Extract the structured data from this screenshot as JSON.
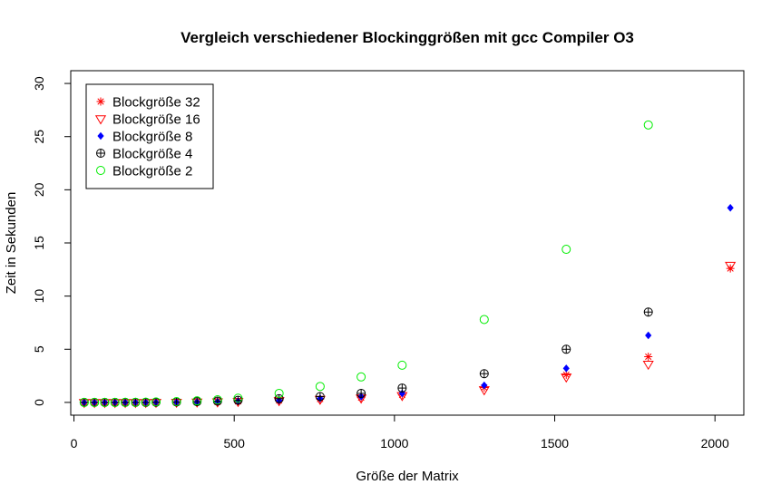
{
  "chart_data": {
    "type": "scatter",
    "title": "Vergleich verschiedener Blockinggrößen mit gcc Compiler O3",
    "xlabel": "Größe der Matrix",
    "ylabel": "Zeit in Sekunden",
    "xlim": [
      -10,
      2090
    ],
    "ylim": [
      -1.2,
      31.2
    ],
    "xticks": [
      0,
      500,
      1000,
      1500,
      2000
    ],
    "yticks": [
      0,
      5,
      10,
      15,
      20,
      25,
      30
    ],
    "grid": false,
    "legend_position": "top-left",
    "series": [
      {
        "name": "Blockgröße 32",
        "color": "#ff0000",
        "marker": "asterisk",
        "x": [
          32,
          64,
          96,
          128,
          160,
          192,
          224,
          256,
          320,
          384,
          448,
          512,
          640,
          768,
          896,
          1024,
          1280,
          1536,
          1792,
          2048
        ],
        "y": [
          0.0,
          0.0,
          0.0,
          0.0,
          0.0,
          0.0,
          0.0,
          0.01,
          0.02,
          0.04,
          0.06,
          0.1,
          0.18,
          0.32,
          0.45,
          0.7,
          1.4,
          2.6,
          4.3,
          12.6
        ]
      },
      {
        "name": "Blockgröße 16",
        "color": "#ff0000",
        "marker": "triangle-down",
        "x": [
          32,
          64,
          96,
          128,
          160,
          192,
          224,
          256,
          320,
          384,
          448,
          512,
          640,
          768,
          896,
          1024,
          1280,
          1536,
          1792,
          2048
        ],
        "y": [
          0.0,
          0.0,
          0.0,
          0.0,
          0.0,
          0.0,
          0.0,
          0.01,
          0.02,
          0.04,
          0.06,
          0.1,
          0.17,
          0.3,
          0.42,
          0.65,
          1.2,
          2.4,
          3.6,
          12.9
        ]
      },
      {
        "name": "Blockgröße 8",
        "color": "#0000ff",
        "marker": "diamond-filled",
        "x": [
          32,
          64,
          96,
          128,
          160,
          192,
          224,
          256,
          320,
          384,
          448,
          512,
          640,
          768,
          896,
          1024,
          1280,
          1536,
          1792,
          2048
        ],
        "y": [
          0.0,
          0.0,
          0.0,
          0.0,
          0.0,
          0.0,
          0.0,
          0.01,
          0.02,
          0.04,
          0.07,
          0.12,
          0.2,
          0.38,
          0.55,
          0.85,
          1.6,
          3.2,
          6.3,
          18.3
        ]
      },
      {
        "name": "Blockgröße 4",
        "color": "#000000",
        "marker": "circle-plus",
        "x": [
          32,
          64,
          96,
          128,
          160,
          192,
          224,
          256,
          320,
          384,
          448,
          512,
          640,
          768,
          896,
          1024,
          1280,
          1536,
          1792
        ],
        "y": [
          0.0,
          0.0,
          0.0,
          0.0,
          0.0,
          0.0,
          0.0,
          0.02,
          0.04,
          0.07,
          0.12,
          0.2,
          0.35,
          0.55,
          0.85,
          1.35,
          2.7,
          5.0,
          8.5
        ]
      },
      {
        "name": "Blockgröße 2",
        "color": "#00ee00",
        "marker": "circle-open",
        "x": [
          32,
          64,
          96,
          128,
          160,
          192,
          224,
          256,
          320,
          384,
          448,
          512,
          640,
          768,
          896,
          1024,
          1280,
          1536,
          1792
        ],
        "y": [
          0.0,
          0.0,
          0.0,
          0.0,
          0.01,
          0.02,
          0.03,
          0.05,
          0.08,
          0.15,
          0.25,
          0.4,
          0.85,
          1.5,
          2.4,
          3.5,
          7.8,
          14.4,
          26.1
        ]
      }
    ]
  }
}
